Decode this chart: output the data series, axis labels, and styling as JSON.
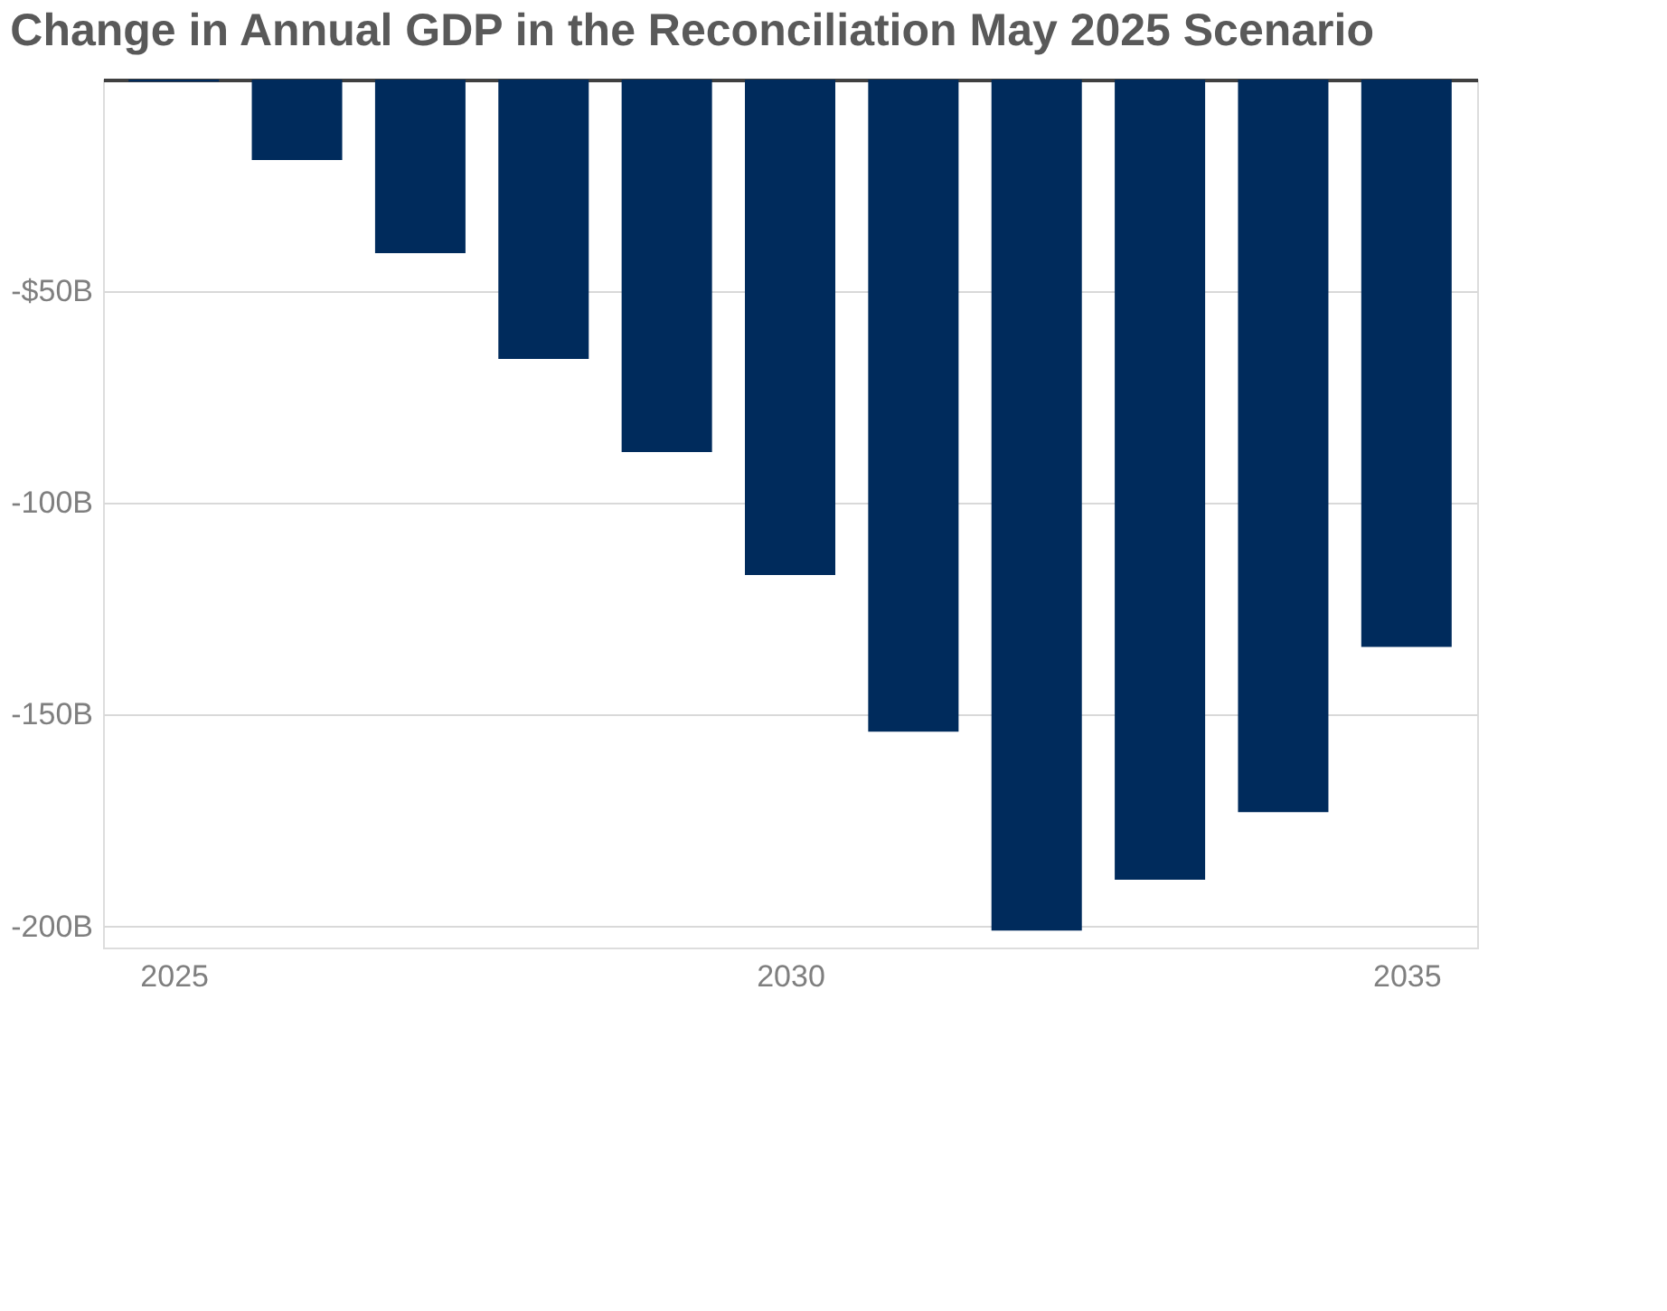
{
  "chart_data": {
    "type": "bar",
    "title": "Change in Annual GDP in the Reconciliation May 2025 Scenario",
    "x": [
      2025,
      2026,
      2027,
      2028,
      2029,
      2030,
      2031,
      2032,
      2033,
      2034,
      2035
    ],
    "series": [
      {
        "color": "#002b5c",
        "values": [
          -0.5,
          -19,
          -41,
          -66,
          -88,
          -117,
          -154,
          -201,
          -189,
          -173,
          -134
        ]
      }
    ],
    "xlim": [
      2024.5,
      2035.5
    ],
    "xticks": [
      2025,
      2030,
      2035
    ],
    "ylim": [
      -205,
      0
    ],
    "yticks": [
      {
        "value": 0,
        "label": null
      },
      {
        "value": -50,
        "label": "-$50B"
      },
      {
        "value": -100,
        "label": "-100B"
      },
      {
        "value": -150,
        "label": "-150B"
      },
      {
        "value": -200,
        "label": "-200B"
      }
    ],
    "grid": "y",
    "legend": false
  }
}
